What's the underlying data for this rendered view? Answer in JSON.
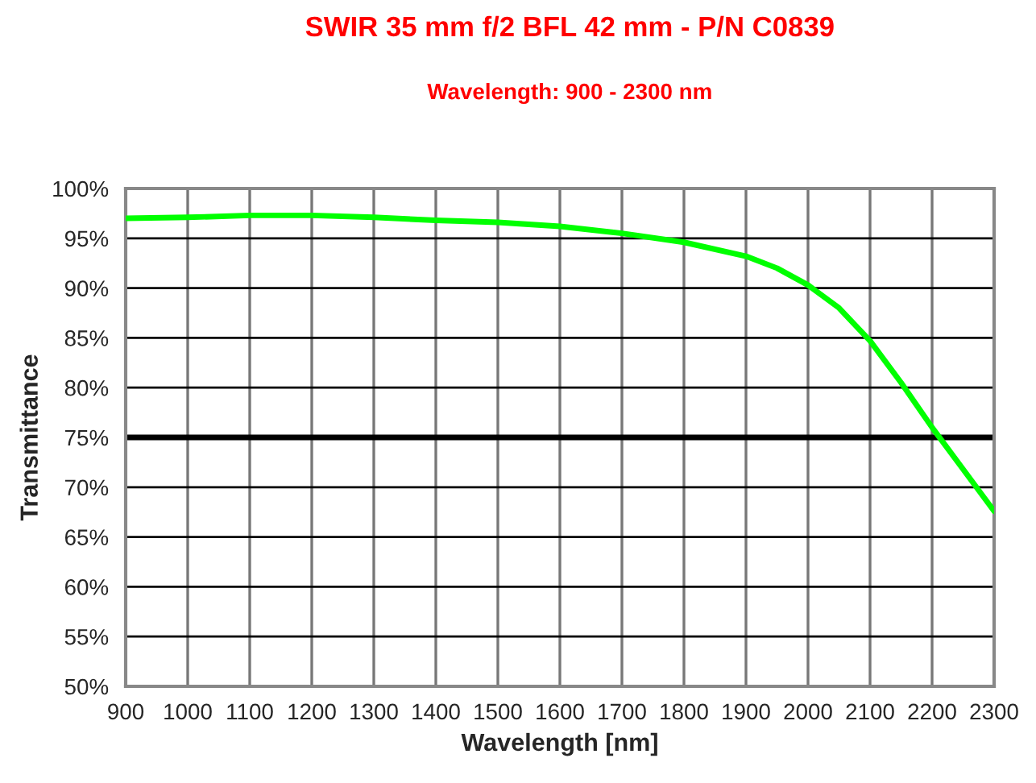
{
  "chart_data": {
    "type": "line",
    "title": "SWIR 35 mm f/2 BFL 42 mm - P/N C0839",
    "subtitle": "Wavelength: 900 - 2300 nm",
    "xlabel": "Wavelength [nm]",
    "ylabel": "Transmittance",
    "x": [
      900,
      1000,
      1100,
      1200,
      1300,
      1400,
      1500,
      1600,
      1700,
      1800,
      1900,
      1950,
      2000,
      2050,
      2100,
      2150,
      2200,
      2250,
      2300
    ],
    "series": [
      {
        "color": "#00ff00",
        "values": [
          97.0,
          97.1,
          97.3,
          97.3,
          97.1,
          96.8,
          96.6,
          96.2,
          95.5,
          94.6,
          93.2,
          92.0,
          90.3,
          88.0,
          84.7,
          80.5,
          76.0,
          71.8,
          67.6
        ]
      }
    ],
    "xlim": [
      900,
      2300
    ],
    "xticks": [
      900,
      1000,
      1100,
      1200,
      1300,
      1400,
      1500,
      1600,
      1700,
      1800,
      1900,
      2000,
      2100,
      2200,
      2300
    ],
    "ylim": [
      50,
      100
    ],
    "yticks": [
      {
        "value": 50,
        "label": "50%"
      },
      {
        "value": 55,
        "label": "55%"
      },
      {
        "value": 60,
        "label": "60%"
      },
      {
        "value": 65,
        "label": "65%"
      },
      {
        "value": 70,
        "label": "70%"
      },
      {
        "value": 75,
        "label": "75%"
      },
      {
        "value": 80,
        "label": "80%"
      },
      {
        "value": 85,
        "label": "85%"
      },
      {
        "value": 90,
        "label": "90%"
      },
      {
        "value": 95,
        "label": "95%"
      },
      {
        "value": 100,
        "label": "100%"
      }
    ],
    "ref_lines": [
      {
        "axis": "y",
        "value": 75,
        "color": "#000000"
      }
    ],
    "grid": true,
    "legend": false,
    "marker": "none",
    "line_style": "solid"
  }
}
